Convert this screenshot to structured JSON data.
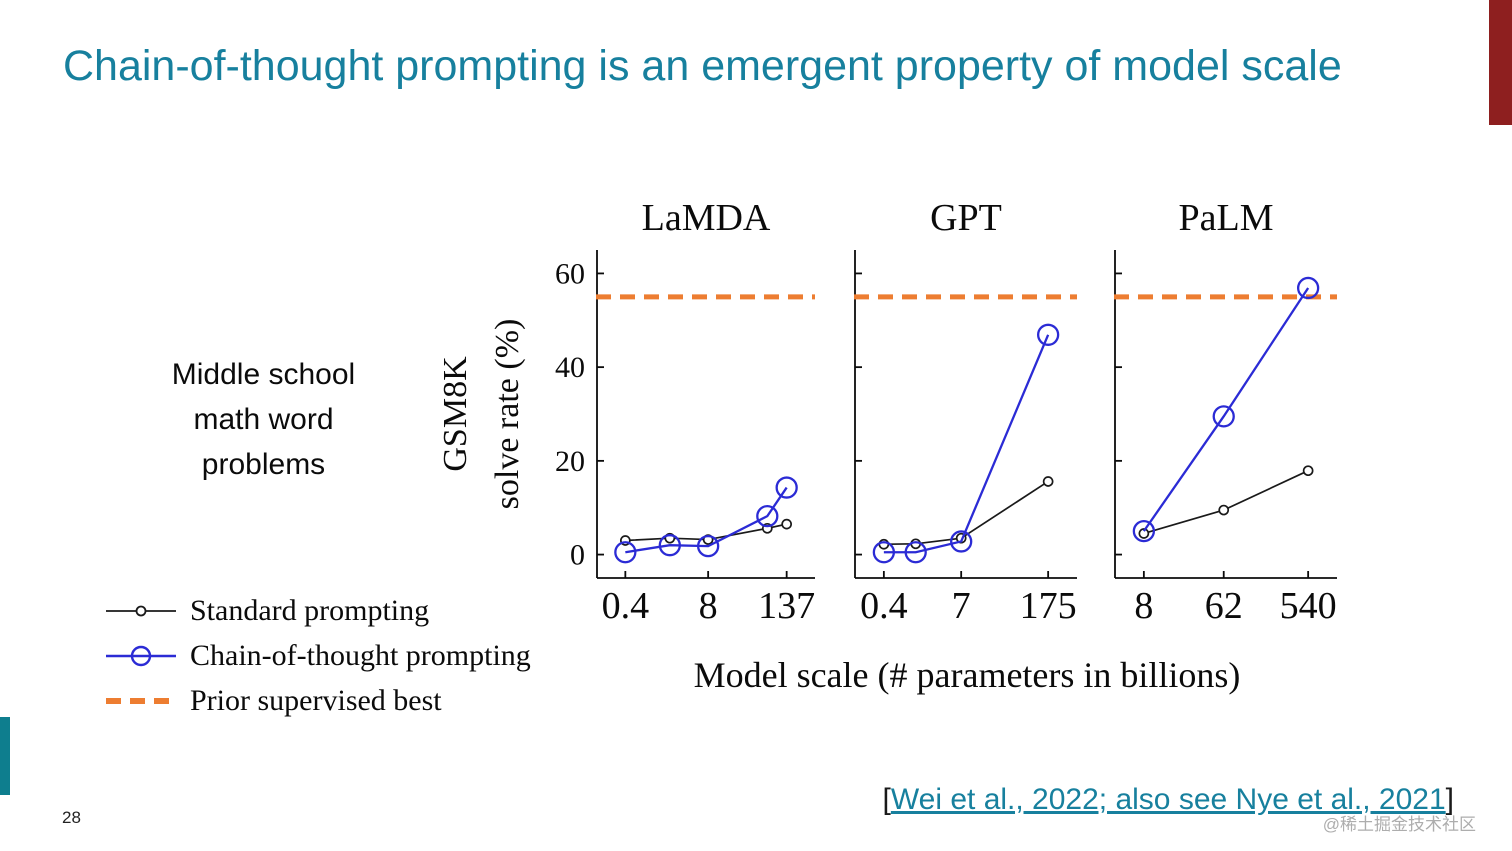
{
  "slide": {
    "title": "Chain-of-thought prompting is an emergent property of model scale",
    "page_number": "28",
    "watermark": "@稀土掘金技术社区",
    "side_note": {
      "lines": [
        "Middle school",
        "math word",
        "problems"
      ]
    }
  },
  "legend": {
    "items": [
      {
        "label": "Standard prompting",
        "marker": "black-line-small-open-circle"
      },
      {
        "label": "Chain-of-thought prompting",
        "marker": "blue-line-large-open-circle"
      },
      {
        "label": "Prior supervised best",
        "marker": "orange-dashed-line"
      }
    ]
  },
  "citation": {
    "open": "[",
    "link_text": "Wei et al., 2022; also see Nye et al., 2021",
    "close": "]"
  },
  "colors": {
    "title_teal": "#17809e",
    "link_teal": "#17809e",
    "accent_dark_red": "#8e1f1f",
    "accent_teal_bar": "#0e7e8e",
    "standard_black": "#1a1a1a",
    "cot_blue": "#2b2bd5",
    "prior_orange": "#ED7D31"
  },
  "chart_data": {
    "type": "line",
    "xlabel": "Model scale (# parameters in billions)",
    "ylabel_lines": [
      "GSM8K",
      "solve rate (%)"
    ],
    "ylim": [
      -5,
      65
    ],
    "yticks": [
      0,
      20,
      40,
      60
    ],
    "x_scale": "log",
    "grid": false,
    "prior_supervised_best": 55,
    "colors": {
      "standard": "#1a1a1a",
      "cot": "#2b2bd5",
      "prior": "#ED7D31"
    },
    "panels": [
      {
        "title": "LaMDA",
        "x": [
          0.4,
          2,
          8,
          68,
          137
        ],
        "xticks": [
          "0.4",
          "8",
          "137"
        ],
        "series": [
          {
            "name": "Standard prompting",
            "values": [
              3.0,
              3.5,
              3.2,
              5.6,
              6.5
            ]
          },
          {
            "name": "Chain-of-thought prompting",
            "values": [
              0.5,
              2.0,
              1.8,
              8.2,
              14.3
            ]
          }
        ]
      },
      {
        "title": "GPT",
        "x": [
          0.4,
          1.3,
          7,
          175
        ],
        "xticks": [
          "0.4",
          "7",
          "175"
        ],
        "series": [
          {
            "name": "Standard prompting",
            "values": [
              2.2,
              2.3,
              3.5,
              15.6
            ]
          },
          {
            "name": "Chain-of-thought prompting",
            "values": [
              0.5,
              0.5,
              2.8,
              46.9
            ]
          }
        ]
      },
      {
        "title": "PaLM",
        "x": [
          8,
          62,
          540
        ],
        "xticks": [
          "8",
          "62",
          "540"
        ],
        "series": [
          {
            "name": "Standard prompting",
            "values": [
              4.5,
              9.5,
              17.9
            ]
          },
          {
            "name": "Chain-of-thought prompting",
            "values": [
              5.0,
              29.5,
              56.9
            ]
          }
        ]
      }
    ]
  }
}
